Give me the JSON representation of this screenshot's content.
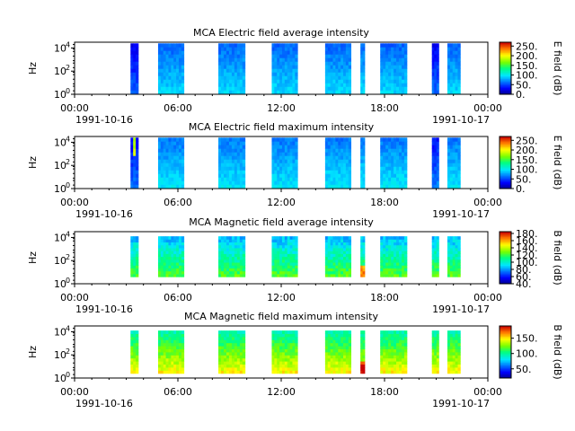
{
  "shared_x": {
    "ticks": [
      "00:00",
      "06:00",
      "12:00",
      "18:00",
      "00:00"
    ],
    "tick_hours": [
      0,
      6,
      12,
      18,
      24
    ],
    "start_date_label": "1991-10-16",
    "end_date_label": "1991-10-17",
    "xlim_hours": [
      0,
      24
    ]
  },
  "data_intervals_hours": [
    [
      3.25,
      3.7
    ],
    [
      4.85,
      6.35
    ],
    [
      8.35,
      9.9
    ],
    [
      11.45,
      12.95
    ],
    [
      14.55,
      16.05
    ],
    [
      16.6,
      16.85
    ],
    [
      17.75,
      19.3
    ],
    [
      20.75,
      21.15
    ],
    [
      21.65,
      22.4
    ]
  ],
  "chart_data": [
    {
      "type": "heatmap",
      "title": "MCA  Electric field average intensity",
      "ylabel": "Hz",
      "yscale": "log",
      "yticks": [
        "10",
        "10",
        "10"
      ],
      "ytick_exponents": [
        "0",
        "2",
        "4"
      ],
      "colorbar": {
        "label": "E field (dB)",
        "ticks": [
          "0.",
          "50.",
          "100.",
          "150.",
          "200.",
          "250."
        ],
        "tick_values": [
          0,
          50,
          100,
          150,
          200,
          250
        ],
        "range": [
          0,
          270
        ]
      },
      "typical_level_db": {
        "low_freq": 95,
        "high_freq": 60
      }
    },
    {
      "type": "heatmap",
      "title": "MCA  Electric field maximum intensity",
      "ylabel": "Hz",
      "yscale": "log",
      "yticks": [
        "10",
        "10",
        "10"
      ],
      "ytick_exponents": [
        "0",
        "2",
        "4"
      ],
      "colorbar": {
        "label": "E field (dB)",
        "ticks": [
          "0.",
          "50.",
          "100.",
          "150.",
          "200.",
          "250."
        ],
        "tick_values": [
          0,
          50,
          100,
          150,
          200,
          250
        ],
        "range": [
          0,
          270
        ]
      },
      "typical_level_db": {
        "low_freq": 100,
        "high_freq": 65
      }
    },
    {
      "type": "heatmap",
      "title": "MCA  Magnetic field average intensity",
      "ylabel": "Hz",
      "yscale": "log",
      "yticks": [
        "10",
        "10",
        "10"
      ],
      "ytick_exponents": [
        "0",
        "2",
        "4"
      ],
      "colorbar": {
        "label": "B field (dB)",
        "ticks": [
          "40.",
          "60.",
          "80.",
          "100.",
          "120.",
          "140.",
          "160.",
          "180."
        ],
        "tick_values": [
          40,
          60,
          80,
          100,
          120,
          140,
          160,
          180
        ],
        "range": [
          40,
          185
        ]
      },
      "typical_level_db": {
        "low_freq": 125,
        "high_freq": 85
      }
    },
    {
      "type": "heatmap",
      "title": "MCA  Magnetic field maximum intensity",
      "ylabel": "Hz",
      "yscale": "log",
      "yticks": [
        "10",
        "10",
        "10"
      ],
      "ytick_exponents": [
        "0",
        "2",
        "4"
      ],
      "colorbar": {
        "label": "B field (dB)",
        "ticks": [
          "50.",
          "100.",
          "150."
        ],
        "tick_values": [
          50,
          100,
          150
        ],
        "range": [
          20,
          190
        ]
      },
      "typical_level_db": {
        "low_freq": 150,
        "high_freq": 95
      }
    }
  ]
}
